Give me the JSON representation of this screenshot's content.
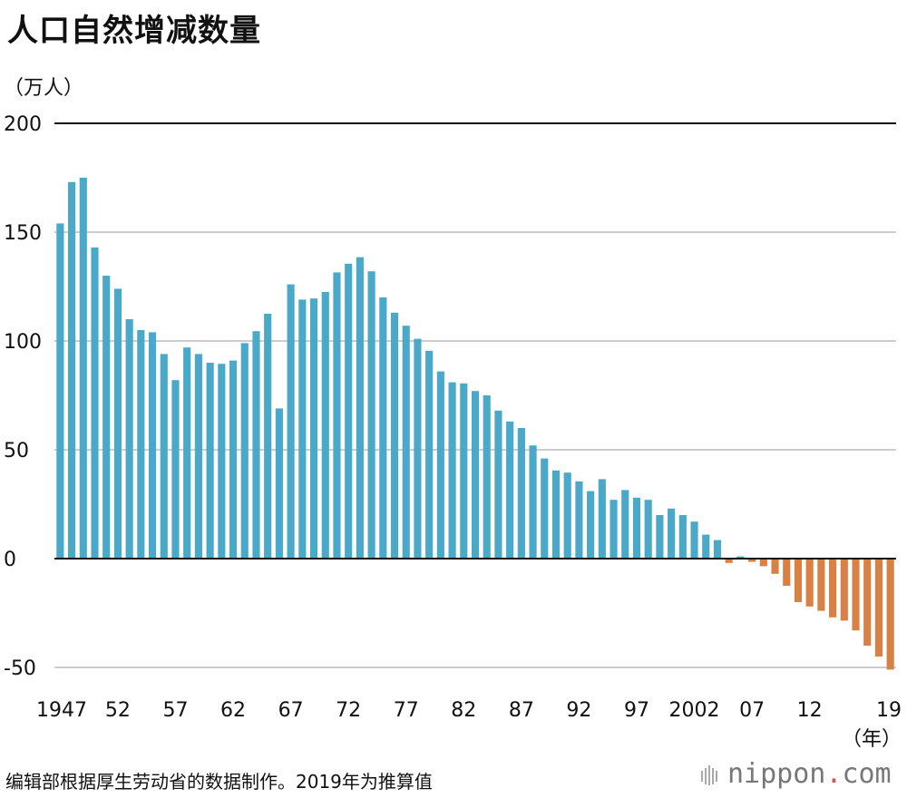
{
  "chart_data": {
    "type": "bar",
    "title": "人口自然增减数量",
    "unit_label": "（万人）",
    "year_unit": "（年）",
    "years": [
      1947,
      1948,
      1949,
      1950,
      1951,
      1952,
      1953,
      1954,
      1955,
      1956,
      1957,
      1958,
      1959,
      1960,
      1961,
      1962,
      1963,
      1964,
      1965,
      1966,
      1967,
      1968,
      1969,
      1970,
      1971,
      1972,
      1973,
      1974,
      1975,
      1976,
      1977,
      1978,
      1979,
      1980,
      1981,
      1982,
      1983,
      1984,
      1985,
      1986,
      1987,
      1988,
      1989,
      1990,
      1991,
      1992,
      1993,
      1994,
      1995,
      1996,
      1997,
      1998,
      1999,
      2000,
      2001,
      2002,
      2003,
      2004,
      2005,
      2006,
      2007,
      2008,
      2009,
      2010,
      2011,
      2012,
      2013,
      2014,
      2015,
      2016,
      2017,
      2018,
      2019
    ],
    "values": [
      154,
      173,
      175,
      143,
      130,
      124,
      110,
      105,
      104,
      94,
      82,
      97,
      94,
      90,
      89.5,
      91,
      99,
      104.5,
      112.5,
      69,
      126,
      119,
      119.5,
      122.5,
      131.5,
      135.5,
      138.5,
      132,
      120,
      113,
      107,
      101,
      95.5,
      86,
      81,
      80.5,
      77,
      75,
      68,
      63,
      60,
      52,
      46,
      40.5,
      39.5,
      35.5,
      31,
      36.5,
      27,
      31.5,
      28,
      27,
      20,
      23,
      20,
      17,
      11,
      8.5,
      -2,
      1,
      -1.5,
      -3.5,
      -7,
      -12.5,
      -20,
      -22,
      -24,
      -27,
      -28.5,
      -33,
      -40,
      -45,
      -51
    ],
    "highlight_negative_color": "#d98144",
    "positive_color": "#4aa8c9",
    "ylim": [
      -50,
      200
    ],
    "yticks": [
      -50,
      0,
      50,
      100,
      150,
      200
    ],
    "xtick_labels": [
      {
        "year": 1947,
        "label": "1947"
      },
      {
        "year": 1952,
        "label": "52"
      },
      {
        "year": 1957,
        "label": "57"
      },
      {
        "year": 1962,
        "label": "62"
      },
      {
        "year": 1967,
        "label": "67"
      },
      {
        "year": 1972,
        "label": "72"
      },
      {
        "year": 1977,
        "label": "77"
      },
      {
        "year": 1982,
        "label": "82"
      },
      {
        "year": 1987,
        "label": "87"
      },
      {
        "year": 1992,
        "label": "92"
      },
      {
        "year": 1997,
        "label": "97"
      },
      {
        "year": 2002,
        "label": "2002"
      },
      {
        "year": 2007,
        "label": "07"
      },
      {
        "year": 2012,
        "label": "12"
      },
      {
        "year": 2019,
        "label": "19"
      }
    ],
    "grid": true
  },
  "source_note": "编辑部根据厚生劳动省的数据制作。2019年为推算值",
  "brand": {
    "name": "nippon",
    "dot": ".",
    "suffix": "com"
  }
}
